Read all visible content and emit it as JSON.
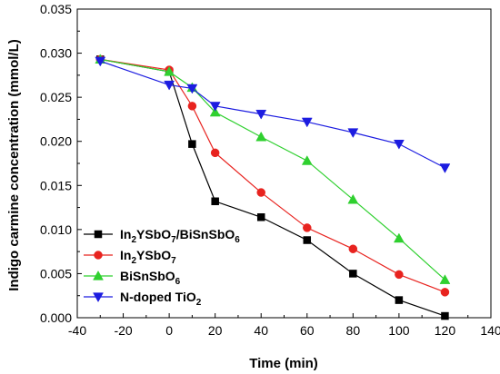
{
  "chart_data": {
    "type": "line",
    "xlabel": "Time (min)",
    "ylabel": "Indigo carmine concentration (mmol/L)",
    "xlim": [
      -40,
      140
    ],
    "ylim": [
      0.0,
      0.035
    ],
    "x_ticks": [
      "-40",
      "-20",
      "0",
      "20",
      "40",
      "60",
      "80",
      "100",
      "120",
      "140"
    ],
    "y_ticks": [
      "0.000",
      "0.005",
      "0.010",
      "0.015",
      "0.020",
      "0.025",
      "0.030",
      "0.035"
    ],
    "grid": false,
    "legend_position": "bottom-left",
    "series": [
      {
        "name": "In2YSbO7/BiSnSbO6",
        "color": "#000000",
        "marker": "square",
        "x": [
          -30,
          0,
          10,
          20,
          40,
          60,
          80,
          100,
          120
        ],
        "y": [
          0.0293,
          0.0279,
          0.0197,
          0.0132,
          0.0114,
          0.0088,
          0.005,
          0.002,
          0.0002
        ]
      },
      {
        "name": "In2YSbO7",
        "color": "#e8231f",
        "marker": "circle",
        "x": [
          -30,
          0,
          10,
          20,
          40,
          60,
          80,
          100,
          120
        ],
        "y": [
          0.0293,
          0.0281,
          0.024,
          0.0187,
          0.0142,
          0.0102,
          0.0078,
          0.0049,
          0.0029
        ]
      },
      {
        "name": "BiSnSbO6",
        "color": "#2fd02f",
        "marker": "triangle-up",
        "x": [
          -30,
          0,
          10,
          20,
          40,
          60,
          80,
          100,
          120
        ],
        "y": [
          0.0293,
          0.0279,
          0.0261,
          0.0233,
          0.0205,
          0.0178,
          0.0134,
          0.009,
          0.0043
        ]
      },
      {
        "name": "N-doped TiO2",
        "color": "#1c1ce0",
        "marker": "triangle-down",
        "x": [
          -30,
          0,
          10,
          20,
          40,
          60,
          80,
          100,
          120
        ],
        "y": [
          0.0291,
          0.0264,
          0.026,
          0.024,
          0.0231,
          0.0222,
          0.021,
          0.0197,
          0.017
        ]
      }
    ],
    "legend": [
      {
        "base": "In",
        "sub": "2",
        "rest": "YSbO",
        "sub2": "7",
        "tail": "/BiSnSbO",
        "sub3": "6"
      },
      {
        "base": "In",
        "sub": "2",
        "rest": "YSbO",
        "sub2": "7",
        "tail": "",
        "sub3": ""
      },
      {
        "base": "BiSnSbO",
        "sub": "6",
        "rest": "",
        "sub2": "",
        "tail": "",
        "sub3": ""
      },
      {
        "base": "N-doped TiO",
        "sub": "2",
        "rest": "",
        "sub2": "",
        "tail": "",
        "sub3": ""
      }
    ]
  }
}
